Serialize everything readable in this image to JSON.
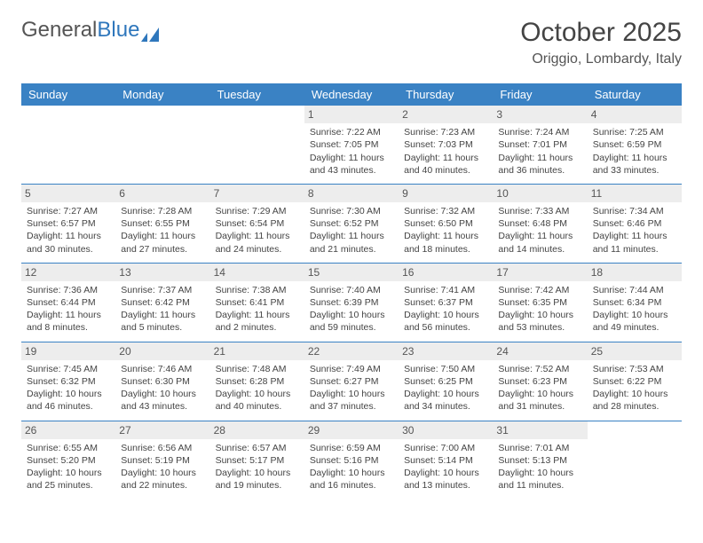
{
  "logo": {
    "text1": "General",
    "text2": "Blue"
  },
  "title": "October 2025",
  "location": "Origgio, Lombardy, Italy",
  "header_bg": "#3a82c4",
  "day_headers": [
    "Sunday",
    "Monday",
    "Tuesday",
    "Wednesday",
    "Thursday",
    "Friday",
    "Saturday"
  ],
  "weeks": [
    [
      {
        "n": "",
        "l1": "",
        "l2": "",
        "l3": "",
        "l4": ""
      },
      {
        "n": "",
        "l1": "",
        "l2": "",
        "l3": "",
        "l4": ""
      },
      {
        "n": "",
        "l1": "",
        "l2": "",
        "l3": "",
        "l4": ""
      },
      {
        "n": "1",
        "l1": "Sunrise: 7:22 AM",
        "l2": "Sunset: 7:05 PM",
        "l3": "Daylight: 11 hours",
        "l4": "and 43 minutes."
      },
      {
        "n": "2",
        "l1": "Sunrise: 7:23 AM",
        "l2": "Sunset: 7:03 PM",
        "l3": "Daylight: 11 hours",
        "l4": "and 40 minutes."
      },
      {
        "n": "3",
        "l1": "Sunrise: 7:24 AM",
        "l2": "Sunset: 7:01 PM",
        "l3": "Daylight: 11 hours",
        "l4": "and 36 minutes."
      },
      {
        "n": "4",
        "l1": "Sunrise: 7:25 AM",
        "l2": "Sunset: 6:59 PM",
        "l3": "Daylight: 11 hours",
        "l4": "and 33 minutes."
      }
    ],
    [
      {
        "n": "5",
        "l1": "Sunrise: 7:27 AM",
        "l2": "Sunset: 6:57 PM",
        "l3": "Daylight: 11 hours",
        "l4": "and 30 minutes."
      },
      {
        "n": "6",
        "l1": "Sunrise: 7:28 AM",
        "l2": "Sunset: 6:55 PM",
        "l3": "Daylight: 11 hours",
        "l4": "and 27 minutes."
      },
      {
        "n": "7",
        "l1": "Sunrise: 7:29 AM",
        "l2": "Sunset: 6:54 PM",
        "l3": "Daylight: 11 hours",
        "l4": "and 24 minutes."
      },
      {
        "n": "8",
        "l1": "Sunrise: 7:30 AM",
        "l2": "Sunset: 6:52 PM",
        "l3": "Daylight: 11 hours",
        "l4": "and 21 minutes."
      },
      {
        "n": "9",
        "l1": "Sunrise: 7:32 AM",
        "l2": "Sunset: 6:50 PM",
        "l3": "Daylight: 11 hours",
        "l4": "and 18 minutes."
      },
      {
        "n": "10",
        "l1": "Sunrise: 7:33 AM",
        "l2": "Sunset: 6:48 PM",
        "l3": "Daylight: 11 hours",
        "l4": "and 14 minutes."
      },
      {
        "n": "11",
        "l1": "Sunrise: 7:34 AM",
        "l2": "Sunset: 6:46 PM",
        "l3": "Daylight: 11 hours",
        "l4": "and 11 minutes."
      }
    ],
    [
      {
        "n": "12",
        "l1": "Sunrise: 7:36 AM",
        "l2": "Sunset: 6:44 PM",
        "l3": "Daylight: 11 hours",
        "l4": "and 8 minutes."
      },
      {
        "n": "13",
        "l1": "Sunrise: 7:37 AM",
        "l2": "Sunset: 6:42 PM",
        "l3": "Daylight: 11 hours",
        "l4": "and 5 minutes."
      },
      {
        "n": "14",
        "l1": "Sunrise: 7:38 AM",
        "l2": "Sunset: 6:41 PM",
        "l3": "Daylight: 11 hours",
        "l4": "and 2 minutes."
      },
      {
        "n": "15",
        "l1": "Sunrise: 7:40 AM",
        "l2": "Sunset: 6:39 PM",
        "l3": "Daylight: 10 hours",
        "l4": "and 59 minutes."
      },
      {
        "n": "16",
        "l1": "Sunrise: 7:41 AM",
        "l2": "Sunset: 6:37 PM",
        "l3": "Daylight: 10 hours",
        "l4": "and 56 minutes."
      },
      {
        "n": "17",
        "l1": "Sunrise: 7:42 AM",
        "l2": "Sunset: 6:35 PM",
        "l3": "Daylight: 10 hours",
        "l4": "and 53 minutes."
      },
      {
        "n": "18",
        "l1": "Sunrise: 7:44 AM",
        "l2": "Sunset: 6:34 PM",
        "l3": "Daylight: 10 hours",
        "l4": "and 49 minutes."
      }
    ],
    [
      {
        "n": "19",
        "l1": "Sunrise: 7:45 AM",
        "l2": "Sunset: 6:32 PM",
        "l3": "Daylight: 10 hours",
        "l4": "and 46 minutes."
      },
      {
        "n": "20",
        "l1": "Sunrise: 7:46 AM",
        "l2": "Sunset: 6:30 PM",
        "l3": "Daylight: 10 hours",
        "l4": "and 43 minutes."
      },
      {
        "n": "21",
        "l1": "Sunrise: 7:48 AM",
        "l2": "Sunset: 6:28 PM",
        "l3": "Daylight: 10 hours",
        "l4": "and 40 minutes."
      },
      {
        "n": "22",
        "l1": "Sunrise: 7:49 AM",
        "l2": "Sunset: 6:27 PM",
        "l3": "Daylight: 10 hours",
        "l4": "and 37 minutes."
      },
      {
        "n": "23",
        "l1": "Sunrise: 7:50 AM",
        "l2": "Sunset: 6:25 PM",
        "l3": "Daylight: 10 hours",
        "l4": "and 34 minutes."
      },
      {
        "n": "24",
        "l1": "Sunrise: 7:52 AM",
        "l2": "Sunset: 6:23 PM",
        "l3": "Daylight: 10 hours",
        "l4": "and 31 minutes."
      },
      {
        "n": "25",
        "l1": "Sunrise: 7:53 AM",
        "l2": "Sunset: 6:22 PM",
        "l3": "Daylight: 10 hours",
        "l4": "and 28 minutes."
      }
    ],
    [
      {
        "n": "26",
        "l1": "Sunrise: 6:55 AM",
        "l2": "Sunset: 5:20 PM",
        "l3": "Daylight: 10 hours",
        "l4": "and 25 minutes."
      },
      {
        "n": "27",
        "l1": "Sunrise: 6:56 AM",
        "l2": "Sunset: 5:19 PM",
        "l3": "Daylight: 10 hours",
        "l4": "and 22 minutes."
      },
      {
        "n": "28",
        "l1": "Sunrise: 6:57 AM",
        "l2": "Sunset: 5:17 PM",
        "l3": "Daylight: 10 hours",
        "l4": "and 19 minutes."
      },
      {
        "n": "29",
        "l1": "Sunrise: 6:59 AM",
        "l2": "Sunset: 5:16 PM",
        "l3": "Daylight: 10 hours",
        "l4": "and 16 minutes."
      },
      {
        "n": "30",
        "l1": "Sunrise: 7:00 AM",
        "l2": "Sunset: 5:14 PM",
        "l3": "Daylight: 10 hours",
        "l4": "and 13 minutes."
      },
      {
        "n": "31",
        "l1": "Sunrise: 7:01 AM",
        "l2": "Sunset: 5:13 PM",
        "l3": "Daylight: 10 hours",
        "l4": "and 11 minutes."
      },
      {
        "n": "",
        "l1": "",
        "l2": "",
        "l3": "",
        "l4": ""
      }
    ]
  ]
}
